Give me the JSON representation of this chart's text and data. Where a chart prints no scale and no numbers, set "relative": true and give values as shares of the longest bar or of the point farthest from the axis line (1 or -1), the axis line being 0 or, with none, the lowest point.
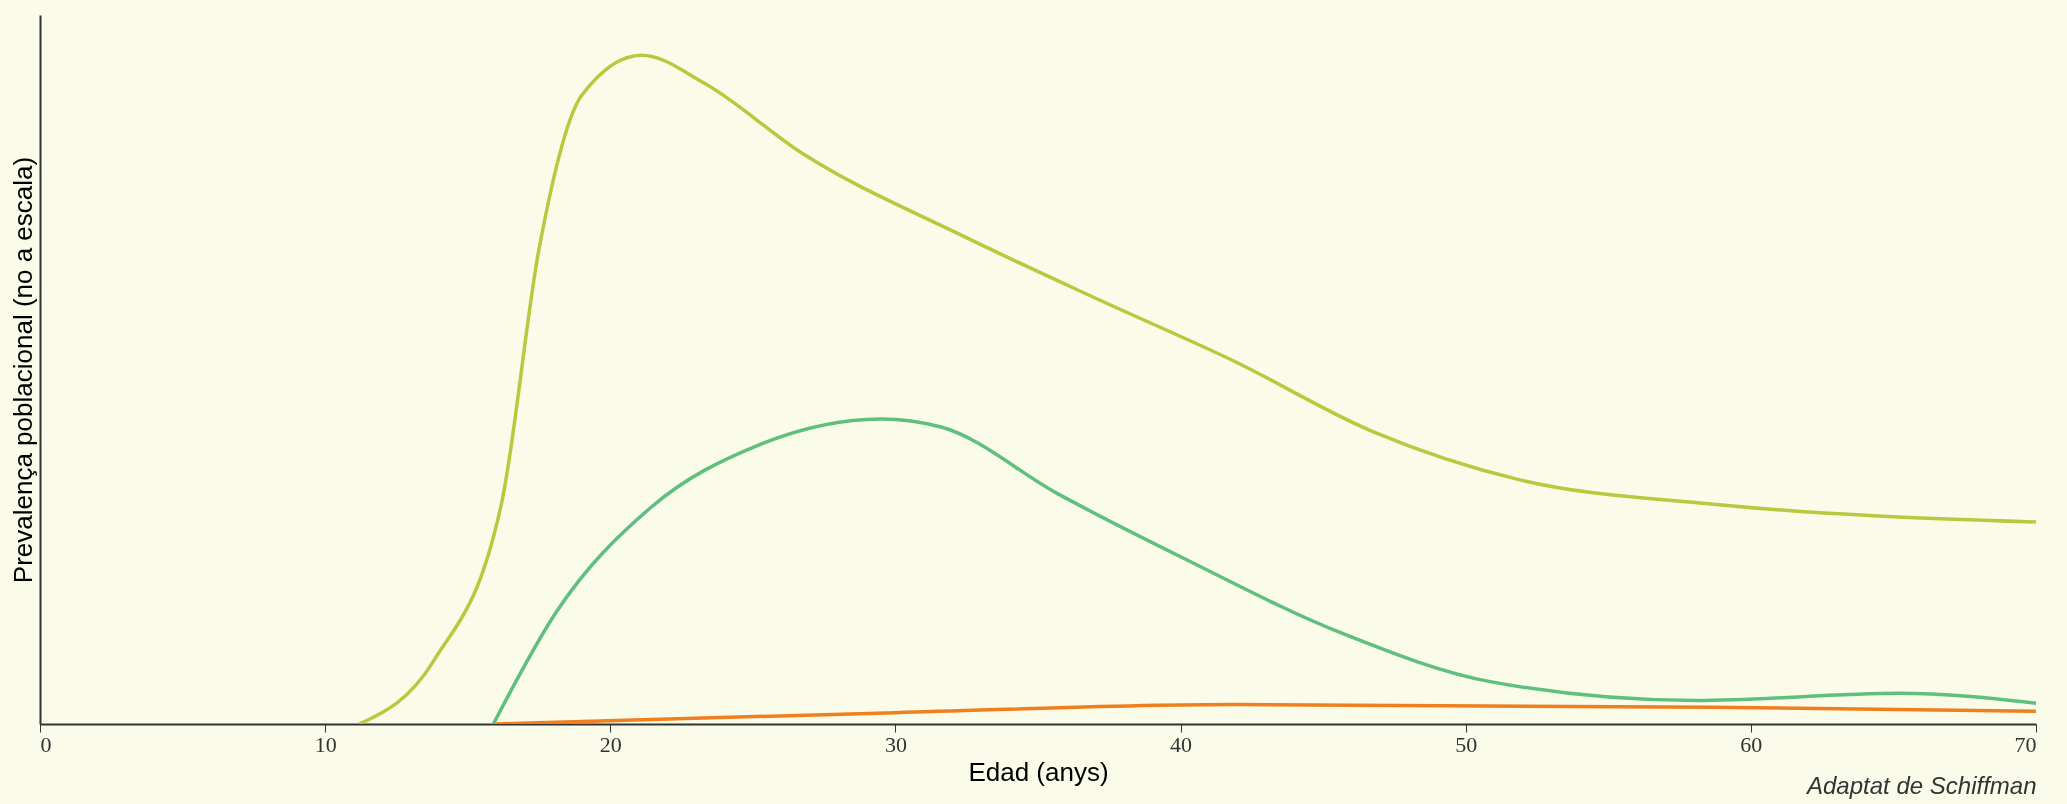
{
  "chart_data": {
    "type": "line",
    "relative": true,
    "xlabel": "Edad (anys)",
    "ylabel": "Prevalença poblacional (no a escala)",
    "annotations": [
      "Adaptat de Schiffman"
    ],
    "xlim": [
      0,
      70
    ],
    "xticks": [
      0,
      10,
      20,
      30,
      40,
      50,
      60,
      70
    ],
    "grid": false,
    "marker": "none",
    "line_style": "solid",
    "series": [
      {
        "color": "#b8c93f",
        "x": [
          11.2,
          13.8,
          16.2,
          17.5,
          19,
          21.1,
          23.3,
          26.7,
          32.4,
          37.1,
          41.9,
          46.7,
          51.9,
          58.6,
          70
        ],
        "values": [
          0,
          0.094,
          0.333,
          0.71,
          0.94,
          1.0,
          0.958,
          0.854,
          0.729,
          0.635,
          0.542,
          0.438,
          0.365,
          0.329,
          0.302
        ]
      },
      {
        "color": "#5fbf7f",
        "x": [
          15.9,
          18.1,
          21.4,
          25.2,
          29.5,
          31.6,
          35.7,
          40,
          45.7,
          50.9,
          58.1,
          65.2,
          70
        ],
        "values": [
          0,
          0.167,
          0.323,
          0.417,
          0.456,
          0.444,
          0.344,
          0.25,
          0.135,
          0.063,
          0.035,
          0.046,
          0.031
        ]
      },
      {
        "color": "#f07f1e",
        "x": [
          16,
          30,
          41.9,
          58.6,
          70
        ],
        "values": [
          0,
          0.017,
          0.029,
          0.025,
          0.019
        ]
      }
    ]
  }
}
